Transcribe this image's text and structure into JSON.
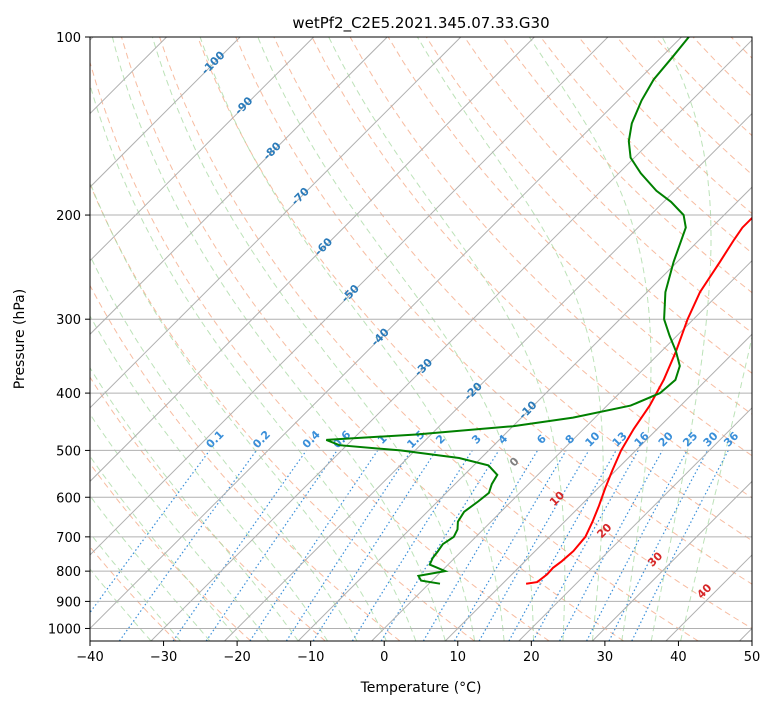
{
  "chart_data": {
    "type": "line",
    "subtype": "skew-T log-P diagram",
    "title": "wetPf2_C2E5.2021.345.07.33.G30",
    "xlabel": "Temperature (°C)",
    "ylabel": "Pressure (hPa)",
    "xlim": [
      -40,
      50
    ],
    "ylim": [
      1050,
      100
    ],
    "x_ticks": [
      "−40",
      "−30",
      "−20",
      "−10",
      "0",
      "10",
      "20",
      "30",
      "40",
      "50"
    ],
    "x_tick_values": [
      -40,
      -30,
      -20,
      -10,
      0,
      10,
      20,
      30,
      40,
      50
    ],
    "y_ticks": [
      "100",
      "200",
      "300",
      "400",
      "500",
      "600",
      "700",
      "800",
      "900",
      "1000"
    ],
    "y_tick_values": [
      100,
      200,
      300,
      400,
      500,
      600,
      700,
      800,
      900,
      1000
    ],
    "grid": true,
    "series": [
      {
        "name": "Temperature",
        "color": "#ff0000",
        "points": [
          [
            840,
            13.2
          ],
          [
            835,
            14.5
          ],
          [
            810,
            14.8
          ],
          [
            790,
            14.7
          ],
          [
            770,
            15.0
          ],
          [
            740,
            15.2
          ],
          [
            700,
            14.9
          ],
          [
            660,
            13.8
          ],
          [
            620,
            12.5
          ],
          [
            580,
            11.0
          ],
          [
            540,
            9.5
          ],
          [
            500,
            8.0
          ],
          [
            460,
            6.8
          ],
          [
            420,
            5.8
          ],
          [
            380,
            4.2
          ],
          [
            340,
            2.0
          ],
          [
            300,
            -0.8
          ],
          [
            270,
            -2.8
          ],
          [
            240,
            -4.2
          ],
          [
            220,
            -5.3
          ],
          [
            210,
            -5.8
          ],
          [
            200,
            -5.8
          ],
          [
            192,
            -5.2
          ],
          [
            185,
            -3.7
          ],
          [
            175,
            -1.2
          ],
          [
            165,
            0.5
          ],
          [
            150,
            1.5
          ],
          [
            140,
            2.5
          ],
          [
            128,
            4.5
          ],
          [
            115,
            5.2
          ],
          [
            100,
            6.0
          ]
        ]
      },
      {
        "name": "Dewpoint",
        "color": "#008000",
        "points": [
          [
            840,
            1.5
          ],
          [
            830,
            -1.5
          ],
          [
            815,
            -2.5
          ],
          [
            800,
            0.5
          ],
          [
            780,
            -2.5
          ],
          [
            760,
            -3.0
          ],
          [
            740,
            -3.2
          ],
          [
            720,
            -3.5
          ],
          [
            700,
            -3.0
          ],
          [
            680,
            -3.5
          ],
          [
            660,
            -4.5
          ],
          [
            635,
            -5.0
          ],
          [
            610,
            -4.5
          ],
          [
            590,
            -4.2
          ],
          [
            570,
            -5.0
          ],
          [
            550,
            -5.5
          ],
          [
            530,
            -8.0
          ],
          [
            515,
            -13.0
          ],
          [
            500,
            -22.0
          ],
          [
            490,
            -31.0
          ],
          [
            480,
            -33.5
          ],
          [
            470,
            -22.0
          ],
          [
            455,
            -10.0
          ],
          [
            440,
            -3.0
          ],
          [
            420,
            3.2
          ],
          [
            400,
            5.5
          ],
          [
            380,
            5.8
          ],
          [
            360,
            4.5
          ],
          [
            340,
            2.0
          ],
          [
            320,
            -1.0
          ],
          [
            300,
            -4.0
          ],
          [
            270,
            -7.5
          ],
          [
            240,
            -10.5
          ],
          [
            210,
            -13.5
          ],
          [
            200,
            -15.5
          ],
          [
            190,
            -19.0
          ],
          [
            182,
            -22.5
          ],
          [
            170,
            -27.0
          ],
          [
            160,
            -30.5
          ],
          [
            150,
            -33.0
          ],
          [
            140,
            -35.0
          ],
          [
            128,
            -36.8
          ],
          [
            118,
            -38.0
          ],
          [
            108,
            -38.5
          ],
          [
            100,
            -39.0
          ]
        ]
      }
    ],
    "mixing_ratio_labels": [
      "0.1",
      "0.2",
      "0.4",
      "0.6",
      "1",
      "1.5",
      "2",
      "3",
      "4",
      "6",
      "8",
      "10",
      "13",
      "16",
      "20",
      "25",
      "30",
      "36"
    ],
    "mixing_ratio_values": [
      0.1,
      0.2,
      0.4,
      0.6,
      1,
      1.5,
      2,
      3,
      4,
      6,
      8,
      10,
      13,
      16,
      20,
      25,
      30,
      36
    ],
    "isotherm_labels": [
      "-100",
      "-90",
      "-80",
      "-70",
      "-60",
      "-50",
      "-40",
      "-30",
      "-20",
      "-10"
    ],
    "isotherm_label_values": [
      -100,
      -90,
      -80,
      -70,
      -60,
      -50,
      -40,
      -30,
      -20,
      -10
    ],
    "moist_adiabat_labels": [
      "0",
      "10",
      "20",
      "30",
      "40"
    ],
    "moist_adiabat_label_values": [
      0,
      10,
      20,
      30,
      40
    ],
    "colors": {
      "temperature": "#ff0000",
      "dewpoint": "#008000",
      "grid": "#b0b0b0",
      "dry_adiabat": "#f4a582",
      "moist_adiabat": "#a6d8a0",
      "mixing_ratio": "#3a8fd9",
      "isotherm_label": "#2b7bba",
      "moist_label": "#d62728",
      "zero_label": "#808080"
    }
  }
}
